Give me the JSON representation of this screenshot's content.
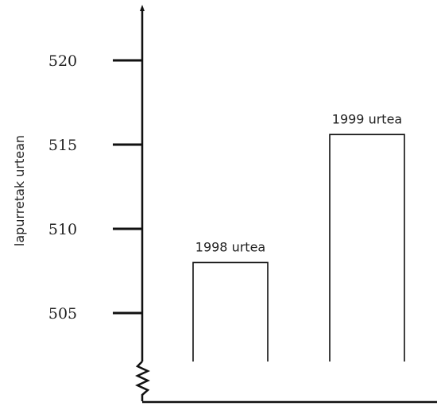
{
  "chart_data": {
    "type": "bar",
    "categories": [
      "1998 urtea",
      "1999 urtea"
    ],
    "values": [
      508,
      515.6
    ],
    "data_labels": [
      "1998 urtea",
      "1999 urtea"
    ],
    "ylabel": "lapurretak urtean",
    "xlabel": "",
    "ylim": [
      502,
      522
    ],
    "yticks": [
      505,
      510,
      515,
      520
    ],
    "ytick_labels": [
      "505",
      "510",
      "515",
      "520"
    ],
    "y_axis_break": true,
    "grid": false
  }
}
